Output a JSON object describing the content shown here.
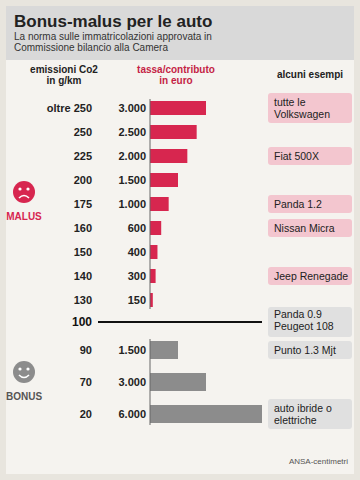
{
  "chart_data": [
    {
      "type": "bar",
      "orientation": "horizontal",
      "title": "Bonus-malus per le auto",
      "subtitle": "La norma sulle immatricolazioni approvata in Commissione bilancio alla Camera",
      "column_headers": [
        "emissioni Co2 in g/km",
        "tassa/contributo in euro",
        "alcuni esempi"
      ],
      "categories": [
        "oltre 250",
        "250",
        "225",
        "200",
        "175",
        "160",
        "150",
        "140",
        "130"
      ],
      "series": [
        {
          "name": "MALUS",
          "color": "#d7264f",
          "values": [
            3000,
            2500,
            2000,
            1500,
            1000,
            600,
            400,
            300,
            150
          ],
          "value_labels": [
            "3.000",
            "2.500",
            "2.000",
            "1.500",
            "1.000",
            "600",
            "400",
            "300",
            "150"
          ]
        }
      ],
      "xlim": [
        0,
        6000
      ],
      "tick_labels": false,
      "data_labels": true,
      "annotations": [
        {
          "text": "tutte le Volkswagen",
          "category": "oltre 250"
        },
        {
          "text": "Fiat 500X",
          "category": "225"
        },
        {
          "text": "Panda 1.2",
          "category": "175"
        },
        {
          "text": "Nissan Micra",
          "category": "160"
        },
        {
          "text": "Jeep Renegade",
          "category": "140"
        }
      ]
    },
    {
      "type": "bar",
      "orientation": "horizontal",
      "threshold": {
        "label": "100",
        "examples": [
          "Panda 0.9",
          "Peugeot 108"
        ]
      },
      "categories": [
        "90",
        "70",
        "20"
      ],
      "series": [
        {
          "name": "BONUS",
          "color": "#8c8c8c",
          "values": [
            1500,
            3000,
            6000
          ],
          "value_labels": [
            "1.500",
            "3.000",
            "6.000"
          ]
        }
      ],
      "xlim": [
        0,
        6000
      ],
      "tick_labels": false,
      "data_labels": true,
      "annotations": [
        {
          "text": "Punto 1.3 Mjt",
          "category": "90"
        },
        {
          "text": "auto ibride o elettriche",
          "category": "20"
        }
      ],
      "source": "ANSA-centimetri"
    }
  ]
}
